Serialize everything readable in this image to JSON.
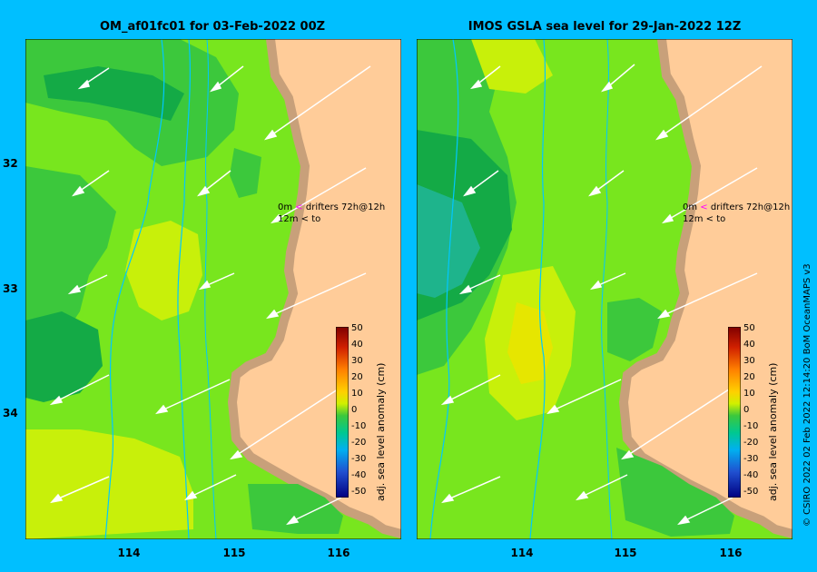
{
  "panels": [
    {
      "title": "OM_af01fc01 for 03-Feb-2022 00Z",
      "drifters_line1_depth": "0m",
      "drifters_line1_symbol": "<",
      "drifters_line1_text": "drifters 72h@12h",
      "drifters_line2_depth": "12m",
      "drifters_line2_symbol": "<",
      "drifters_line2_text": "to",
      "colorbar_title": "adj. sea level anomaly (cm)"
    },
    {
      "title": "IMOS GSLA sea level  for 29-Jan-2022 12Z",
      "drifters_line1_depth": "0m",
      "drifters_line1_symbol": "<",
      "drifters_line1_text": "drifters 72h@12h",
      "drifters_line2_depth": "12m",
      "drifters_line2_symbol": "<",
      "drifters_line2_text": "to",
      "colorbar_title": "adj. sea level anomaly (cm)"
    }
  ],
  "y_ticks": [
    "32",
    "33",
    "34"
  ],
  "x_ticks": [
    "114",
    "115",
    "116"
  ],
  "colorbar_ticks": [
    "50",
    "40",
    "30",
    "20",
    "10",
    "0",
    "-10",
    "-20",
    "-30",
    "-40",
    "-50"
  ],
  "credit": "© CSIRO 2022   02 Feb 2022 12:14:20 BoM OceanMAPS v3",
  "colors": {
    "background": "#00BFFF",
    "land": "#FFCC99",
    "coast": "#C8A07A",
    "ssh_green": "#3CC83C",
    "ssh_light_green": "#78E61E",
    "ssh_yellow_green": "#C8F00A",
    "ssh_dark_green": "#14AA46",
    "ssh_teal": "#1EB48C",
    "drifter_marker": "#FF00FF"
  }
}
